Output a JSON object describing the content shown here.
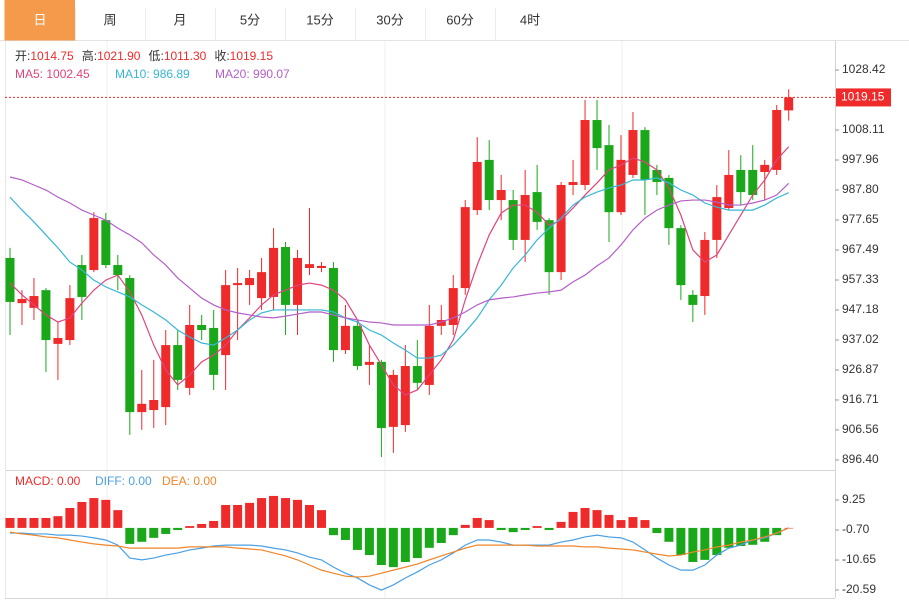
{
  "tabs": {
    "items": [
      "日",
      "周",
      "月",
      "5分",
      "15分",
      "30分",
      "60分",
      "4时"
    ],
    "active": 0
  },
  "chart_data": [
    {
      "type": "candlestick",
      "up_color": "#ee2a2a",
      "down_color": "#1aa81a",
      "info": [
        {
          "label": "开:",
          "value": "1014.75"
        },
        {
          "label": "高:",
          "value": "1021.90"
        },
        {
          "label": "低:",
          "value": "1011.30"
        },
        {
          "label": "收:",
          "value": "1019.15"
        }
      ],
      "open": [
        964.8,
        949.5,
        947.9,
        953.9,
        935.7,
        937.0,
        962.4,
        960.7,
        977.6,
        962.4,
        958.0,
        912.6,
        913.3,
        914.3,
        935.3,
        920.8,
        942.1,
        941.1,
        931.9,
        955.6,
        955.6,
        951.2,
        951.6,
        968.5,
        948.9,
        961.4,
        961.4,
        961.4,
        933.6,
        941.8,
        928.6,
        929.6,
        907.6,
        908.2,
        928.2,
        921.8,
        941.8,
        942.1,
        954.6,
        981.0,
        998.0,
        984.4,
        984.4,
        970.9,
        987.1,
        977.6,
        960.0,
        989.5,
        989.5,
        1011.5,
        1003.0,
        980.3,
        992.9,
        1008.1,
        994.6,
        991.9,
        974.9,
        952.3,
        951.9,
        970.9,
        981.7,
        994.6,
        994.6,
        993.9,
        994.6,
        1014.75
      ],
      "high": [
        968.2,
        953.9,
        958.0,
        954.6,
        943.1,
        955.6,
        965.8,
        980.3,
        980.0,
        965.8,
        959.0,
        926.9,
        930.3,
        940.4,
        940.4,
        948.9,
        945.5,
        947.2,
        960.7,
        961.4,
        960.7,
        964.8,
        974.9,
        970.2,
        967.5,
        981.7,
        963.4,
        963.4,
        948.9,
        943.8,
        935.3,
        930.3,
        926.9,
        935.3,
        937.0,
        948.9,
        948.9,
        959.0,
        984.4,
        1005.7,
        1004.7,
        992.9,
        987.8,
        994.6,
        996.3,
        978.3,
        990.5,
        998.0,
        1018.3,
        1018.3,
        1009.8,
        1006.4,
        1014.2,
        1009.1,
        996.3,
        992.9,
        975.9,
        953.9,
        973.6,
        989.5,
        1001.3,
        999.6,
        1003.0,
        998.0,
        1016.6,
        1021.9
      ],
      "low": [
        938.7,
        942.1,
        943.8,
        926.2,
        923.5,
        935.3,
        943.8,
        960.0,
        961.4,
        953.9,
        904.9,
        906.6,
        907.2,
        908.2,
        920.1,
        918.4,
        937.0,
        920.1,
        920.1,
        937.0,
        948.9,
        947.2,
        947.2,
        938.7,
        938.7,
        959.0,
        960.0,
        929.6,
        932.3,
        926.9,
        921.8,
        897.4,
        898.8,
        905.9,
        920.1,
        918.4,
        938.7,
        938.7,
        952.3,
        979.3,
        981.0,
        977.6,
        967.5,
        963.4,
        974.3,
        952.3,
        957.3,
        986.1,
        987.8,
        994.6,
        970.2,
        979.3,
        991.9,
        979.3,
        986.1,
        969.2,
        950.6,
        943.1,
        945.5,
        964.8,
        981.0,
        982.7,
        984.4,
        984.4,
        992.9,
        1011.3
      ],
      "close": [
        949.9,
        950.9,
        951.9,
        937.0,
        937.7,
        951.2,
        951.6,
        978.3,
        962.4,
        959.0,
        912.6,
        915.4,
        916.7,
        935.3,
        923.5,
        942.1,
        940.4,
        925.2,
        955.6,
        956.3,
        958.0,
        960.0,
        968.2,
        948.9,
        964.8,
        962.7,
        962.1,
        933.6,
        941.8,
        928.2,
        929.6,
        907.2,
        925.2,
        928.2,
        922.5,
        941.8,
        943.8,
        954.6,
        982.0,
        997.3,
        984.4,
        987.8,
        970.9,
        986.1,
        977.0,
        960.0,
        989.5,
        990.5,
        1011.5,
        1002.0,
        980.3,
        998.0,
        1008.1,
        991.2,
        990.5,
        974.9,
        955.6,
        948.9,
        970.9,
        985.4,
        992.9,
        987.1,
        986.1,
        996.3,
        1014.9,
        1019.15
      ],
      "series": [
        {
          "name": "MA5: 1002.45",
          "color": "#e0437c",
          "values": [
            956.3,
            952.3,
            948.9,
            945.5,
            943.1,
            944.5,
            949.5,
            953.9,
            957.3,
            959.0,
            953.3,
            945.5,
            935.3,
            926.9,
            921.8,
            925.2,
            929.6,
            931.9,
            935.3,
            940.4,
            944.5,
            948.9,
            952.3,
            953.9,
            955.6,
            956.3,
            955.6,
            953.9,
            950.6,
            943.8,
            935.3,
            928.6,
            921.8,
            918.4,
            920.1,
            925.2,
            930.3,
            937.0,
            950.6,
            962.4,
            972.6,
            980.0,
            982.7,
            982.7,
            980.3,
            975.9,
            977.6,
            981.7,
            986.1,
            990.2,
            994.6,
            996.3,
            998.6,
            997.3,
            994.6,
            988.5,
            979.3,
            967.5,
            963.4,
            965.8,
            972.6,
            979.3,
            986.1,
            991.2,
            998.0,
            1002.45
          ]
        },
        {
          "name": "MA10: 986.89",
          "color": "#37b6d6",
          "values": [
            985.4,
            981.0,
            977.0,
            972.6,
            968.2,
            963.4,
            960.7,
            957.3,
            955.0,
            953.3,
            951.6,
            948.9,
            946.5,
            943.8,
            940.4,
            938.0,
            936.0,
            935.3,
            937.7,
            940.4,
            943.8,
            946.2,
            947.2,
            947.2,
            947.2,
            947.2,
            947.2,
            946.5,
            944.5,
            943.1,
            940.4,
            938.7,
            936.0,
            933.6,
            930.9,
            930.9,
            931.9,
            935.3,
            939.7,
            944.5,
            950.6,
            955.6,
            961.4,
            965.8,
            970.9,
            974.9,
            978.3,
            982.7,
            985.4,
            987.1,
            988.5,
            989.5,
            991.2,
            991.2,
            991.9,
            990.2,
            987.8,
            986.1,
            983.4,
            982.0,
            981.0,
            981.0,
            981.0,
            982.7,
            985.1,
            986.89
          ]
        },
        {
          "name": "MA20: 990.07",
          "color": "#b35fc8",
          "values": [
            992.2,
            991.2,
            989.5,
            987.8,
            985.4,
            983.4,
            981.0,
            979.3,
            977.6,
            974.9,
            972.6,
            969.9,
            965.8,
            962.4,
            958.0,
            954.6,
            951.2,
            948.9,
            947.2,
            946.2,
            945.5,
            944.8,
            944.5,
            945.1,
            945.8,
            946.5,
            946.5,
            945.5,
            944.5,
            943.8,
            943.1,
            942.8,
            942.1,
            942.1,
            942.1,
            942.1,
            943.1,
            944.5,
            946.5,
            948.9,
            950.6,
            951.2,
            951.6,
            952.3,
            952.9,
            953.3,
            953.9,
            956.7,
            959.0,
            962.1,
            964.8,
            969.2,
            974.3,
            978.3,
            981.0,
            982.7,
            984.1,
            984.4,
            984.4,
            983.7,
            982.7,
            982.7,
            983.4,
            984.4,
            986.1,
            990.07
          ]
        }
      ],
      "ylim": [
        893.0,
        1036.9
      ],
      "yticks": [
        {
          "value": 896.4,
          "label": "896.40"
        },
        906.56,
        916.71,
        926.87,
        937.02,
        947.18,
        957.33,
        967.49,
        977.65,
        {
          "value": 987.8,
          "label": "987.80"
        },
        997.96,
        1008.11,
        1028.42
      ]
    },
    {
      "type": "macd",
      "up_color": "#ee2a2a",
      "down_color": "#1aa81a",
      "histogram": {
        "name": "MACD: 0.00",
        "color": "#ee2a2a",
        "values": [
          3.3,
          3.3,
          3.3,
          3.3,
          3.9,
          6.6,
          8.6,
          9.9,
          9.3,
          5.9,
          -5.3,
          -4.6,
          -3.3,
          -2.0,
          -0.7,
          0.6,
          1.3,
          2.3,
          7.6,
          7.6,
          8.3,
          9.9,
          10.6,
          9.9,
          9.3,
          7.6,
          5.9,
          -2.4,
          -4.0,
          -7.3,
          -9.0,
          -12.3,
          -13.0,
          -11.3,
          -10.0,
          -6.6,
          -5.0,
          -2.4,
          1.0,
          3.3,
          2.6,
          -0.7,
          -1.4,
          -0.7,
          0.6,
          -0.7,
          2.0,
          5.3,
          6.6,
          5.9,
          4.3,
          2.6,
          3.6,
          2.6,
          -1.7,
          -4.6,
          -9.0,
          -11.3,
          -10.6,
          -9.0,
          -6.6,
          -6.0,
          -5.6,
          -4.6,
          -2.4,
          0
        ]
      },
      "series": [
        {
          "name": "DIFF: 0.00",
          "color": "#4a9fe3",
          "values": [
            -1.7,
            -1.7,
            -2.0,
            -2.0,
            -2.4,
            -2.4,
            -2.7,
            -3.3,
            -4.0,
            -5.7,
            -10.0,
            -10.6,
            -10.0,
            -9.0,
            -8.3,
            -7.3,
            -6.7,
            -6.0,
            -5.7,
            -5.7,
            -5.7,
            -6.0,
            -6.7,
            -7.3,
            -8.3,
            -9.7,
            -10.6,
            -13.0,
            -15.0,
            -16.6,
            -18.9,
            -20.6,
            -18.9,
            -16.6,
            -14.6,
            -12.3,
            -10.6,
            -8.3,
            -5.7,
            -4.0,
            -4.0,
            -4.7,
            -5.7,
            -5.7,
            -5.7,
            -5.7,
            -4.7,
            -4.0,
            -3.0,
            -2.4,
            -3.0,
            -3.3,
            -4.7,
            -7.3,
            -10.0,
            -12.3,
            -14.0,
            -14.0,
            -12.3,
            -9.0,
            -6.7,
            -5.7,
            -4.0,
            -3.3,
            -1.7,
            0
          ]
        },
        {
          "name": "DEA: 0.00",
          "color": "#f0852a",
          "values": [
            -1.4,
            -2.0,
            -2.4,
            -3.0,
            -3.3,
            -4.0,
            -4.7,
            -5.3,
            -5.7,
            -6.0,
            -6.7,
            -6.7,
            -6.7,
            -6.7,
            -6.7,
            -6.3,
            -6.3,
            -6.3,
            -6.3,
            -6.7,
            -7.0,
            -7.3,
            -8.3,
            -9.3,
            -10.6,
            -12.3,
            -14.0,
            -15.0,
            -16.0,
            -16.3,
            -16.0,
            -15.0,
            -14.0,
            -13.0,
            -12.0,
            -10.6,
            -9.3,
            -8.0,
            -6.7,
            -5.7,
            -5.7,
            -5.7,
            -5.7,
            -5.7,
            -6.0,
            -6.0,
            -6.0,
            -6.0,
            -6.3,
            -6.3,
            -6.7,
            -7.0,
            -7.3,
            -8.0,
            -8.7,
            -9.3,
            -9.0,
            -8.0,
            -7.3,
            -6.3,
            -5.7,
            -4.7,
            -4.0,
            -3.0,
            -1.7,
            0
          ]
        }
      ],
      "ylim": [
        -23.24,
        18.54
      ],
      "yticks": [
        9.25,
        {
          "value": -0.7,
          "label": "-0.70"
        },
        -10.65,
        -20.59
      ]
    }
  ]
}
